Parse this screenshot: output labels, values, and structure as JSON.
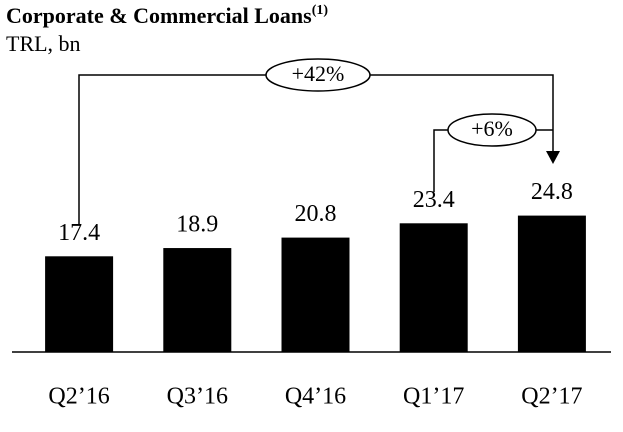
{
  "chart_data": {
    "type": "bar",
    "title": "Corporate & Commercial Loans",
    "title_note": "(1)",
    "subtitle": "TRL, bn",
    "categories": [
      "Q2’16",
      "Q3’16",
      "Q4’16",
      "Q1’17",
      "Q2’17"
    ],
    "values": [
      17.4,
      18.9,
      20.8,
      23.4,
      24.8
    ],
    "color": "#000000",
    "ylim": [
      0,
      30
    ],
    "annotations": [
      "+42%",
      "+6%"
    ]
  }
}
